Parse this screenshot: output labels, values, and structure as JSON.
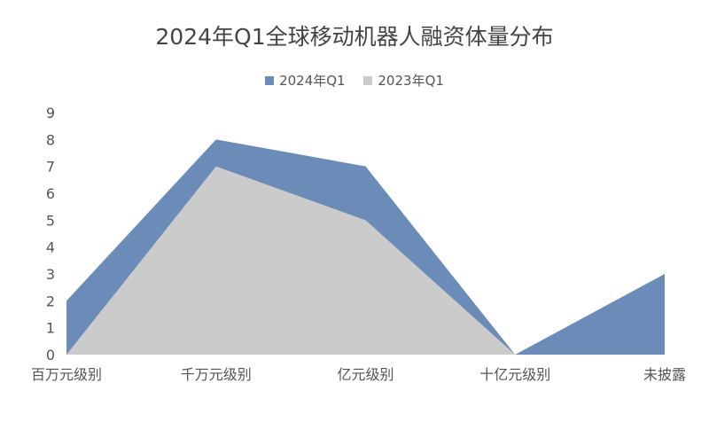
{
  "chart_data": {
    "type": "area",
    "title": "2024年Q1全球移动机器人融资体量分布",
    "categories": [
      "百万元级别",
      "千万元级别",
      "亿元级别",
      "十亿元级别",
      "未披露"
    ],
    "series": [
      {
        "name": "2024年Q1",
        "values": [
          2,
          8,
          7,
          0,
          3
        ],
        "color": "#6b8cb8"
      },
      {
        "name": "2023年Q1",
        "values": [
          0,
          7,
          5,
          0,
          0
        ],
        "color": "#cbcbcb"
      }
    ],
    "ylim": [
      0,
      9
    ],
    "yticks": [
      0,
      1,
      2,
      3,
      4,
      5,
      6,
      7,
      8,
      9
    ],
    "grid": false,
    "legend": "top"
  }
}
